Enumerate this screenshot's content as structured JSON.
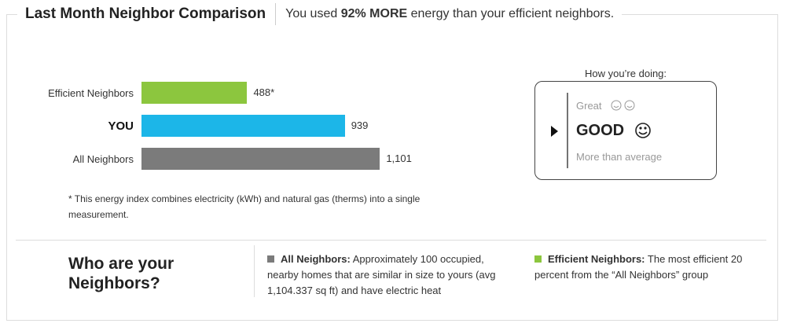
{
  "header": {
    "title": "Last Month Neighbor Comparison",
    "summary": [
      "You used",
      "92% MORE",
      "energy than your efficient neighbors."
    ]
  },
  "chart_data": {
    "type": "bar",
    "orientation": "horizontal",
    "categories": [
      "Efficient Neighbors",
      "YOU",
      "All Neighbors"
    ],
    "values": [
      488,
      939,
      1101
    ],
    "value_labels": [
      "488*",
      "939",
      "1,101"
    ],
    "colors": [
      "#8cc63e",
      "#1cb6e8",
      "#7b7b7b"
    ]
  },
  "footnote": "* This energy index combines electricity (kWh) and natural gas (therms) into a single measurement.",
  "rating": {
    "title": "How you’re doing:",
    "levels": [
      "Great",
      "GOOD",
      "More than average"
    ]
  },
  "neighbors": {
    "heading": "Who are your Neighbors?",
    "definitions": [
      {
        "term": "All Neighbors:",
        "text": "Approximately 100 occupied, nearby homes that are similar in size to yours (avg 1,104.337 sq ft) and have electric heat",
        "color": "#7b7b7b"
      },
      {
        "term": "Efficient Neighbors:",
        "text": "The most efficient 20 percent from the “All Neighbors” group",
        "color": "#8cc63e"
      }
    ]
  }
}
